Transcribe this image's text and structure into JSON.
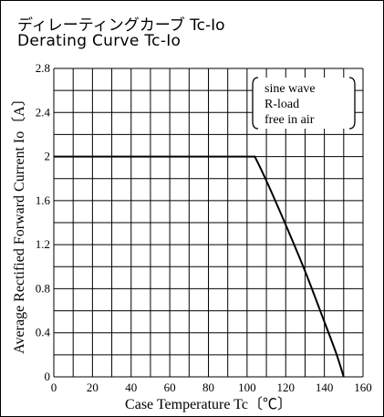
{
  "chart_data": {
    "type": "line",
    "title": "ディレーティングカーブ Tc-Io",
    "subtitle": "Derating Curve Tc-Io",
    "xlabel": "Case Temperature Tc〔℃〕",
    "ylabel": "Average Rectified Forward Current Io〔A〕",
    "xlim": [
      0,
      160
    ],
    "ylim": [
      0,
      2.8
    ],
    "x_ticks": [
      "0",
      "20",
      "40",
      "60",
      "80",
      "100",
      "120",
      "140",
      "160"
    ],
    "y_ticks": [
      "0",
      "0.4",
      "0.8",
      "1.2",
      "1.6",
      "2",
      "2.4",
      "2.8"
    ],
    "grid": true,
    "legend": {
      "position": "top-right",
      "lines": [
        "sine wave",
        "R-load",
        "free in air"
      ]
    },
    "series": [
      {
        "x": [
          0,
          104,
          110,
          120,
          130,
          140,
          146,
          150
        ],
        "y": [
          2.0,
          2.0,
          1.78,
          1.38,
          0.96,
          0.5,
          0.22,
          0.0
        ]
      }
    ],
    "colors": {
      "line": "#000000",
      "grid": "#000000"
    }
  }
}
